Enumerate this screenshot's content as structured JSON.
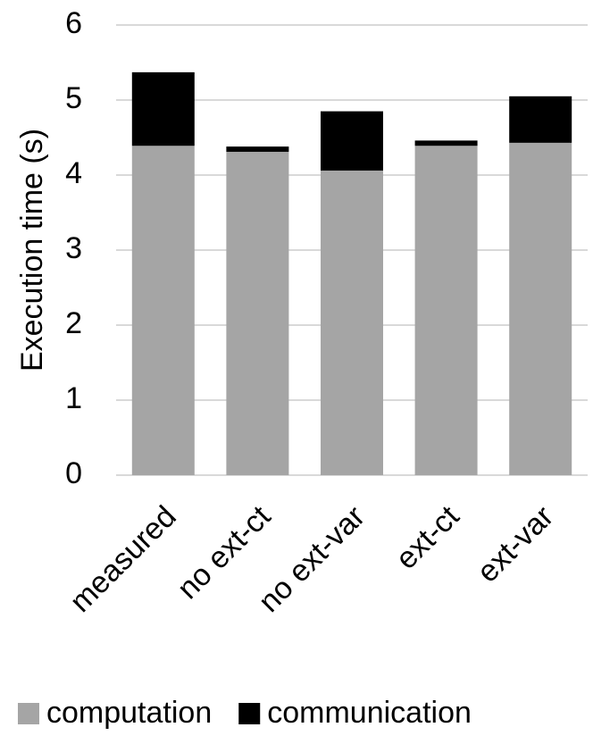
{
  "chart_data": {
    "type": "stacked_bar",
    "y_label": "Execution time (s)",
    "categories": [
      "measured",
      "no ext-ct",
      "no ext-var",
      "ext-ct",
      "ext-var"
    ],
    "series": [
      {
        "name": "computation",
        "color": "#a5a5a5",
        "values": [
          4.39,
          4.31,
          4.06,
          4.39,
          4.43
        ]
      },
      {
        "name": "communication",
        "color": "#000000",
        "values": [
          0.98,
          0.07,
          0.79,
          0.07,
          0.62
        ]
      }
    ],
    "ylim": [
      0,
      6
    ],
    "yticks": [
      0,
      1,
      2,
      3,
      4,
      5,
      6
    ],
    "grid": true
  }
}
